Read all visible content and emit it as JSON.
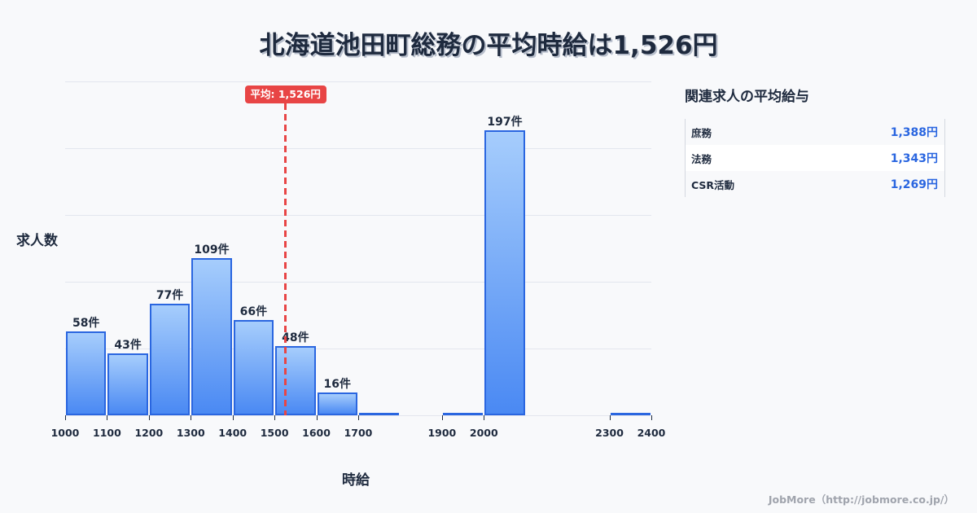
{
  "title": "北海道池田町総務の平均時給は1,526円",
  "chart_data": {
    "type": "bar",
    "title": "北海道池田町総務の平均時給は1,526円",
    "xlabel": "時給",
    "ylabel": "求人数",
    "bins": [
      {
        "from": 1000,
        "to": 1100,
        "value": 58,
        "label": "58件"
      },
      {
        "from": 1100,
        "to": 1200,
        "value": 43,
        "label": "43件"
      },
      {
        "from": 1200,
        "to": 1300,
        "value": 77,
        "label": "77件"
      },
      {
        "from": 1300,
        "to": 1400,
        "value": 109,
        "label": "109件"
      },
      {
        "from": 1400,
        "to": 1500,
        "value": 66,
        "label": "66件"
      },
      {
        "from": 1500,
        "to": 1600,
        "value": 48,
        "label": "48件"
      },
      {
        "from": 1600,
        "to": 1700,
        "value": 16,
        "label": "16件"
      },
      {
        "from": 1700,
        "to": 1800,
        "value": 1,
        "label": ""
      },
      {
        "from": 1900,
        "to": 2000,
        "value": 1,
        "label": ""
      },
      {
        "from": 2000,
        "to": 2100,
        "value": 197,
        "label": "197件"
      },
      {
        "from": 2300,
        "to": 2400,
        "value": 1,
        "label": ""
      }
    ],
    "categories": [
      "1000",
      "1100",
      "1200",
      "1300",
      "1400",
      "1500",
      "1600",
      "1700",
      "1900",
      "2000",
      "2300",
      "2400"
    ],
    "values": [
      58,
      43,
      77,
      109,
      66,
      48,
      16,
      1,
      1,
      197,
      1
    ],
    "x_tick_labels": [
      "1000",
      "1100",
      "1200",
      "1300",
      "1400",
      "1500",
      "1600",
      "1700",
      "1900",
      "2000",
      "2300",
      "2400"
    ],
    "xlim": [
      1000,
      2400
    ],
    "ylim": [
      0,
      231
    ],
    "grid": true,
    "mean": {
      "value": 1526,
      "label": "平均: 1,526円",
      "color": "#e84545"
    },
    "bar_color": "#2a66e0"
  },
  "side_panel": {
    "title": "関連求人の平均給与",
    "rows": [
      {
        "name": "庶務",
        "value": "1,388円"
      },
      {
        "name": "法務",
        "value": "1,343円"
      },
      {
        "name": "CSR活動",
        "value": "1,269円"
      }
    ]
  },
  "footer": "JobMore（http://jobmore.co.jp/）"
}
